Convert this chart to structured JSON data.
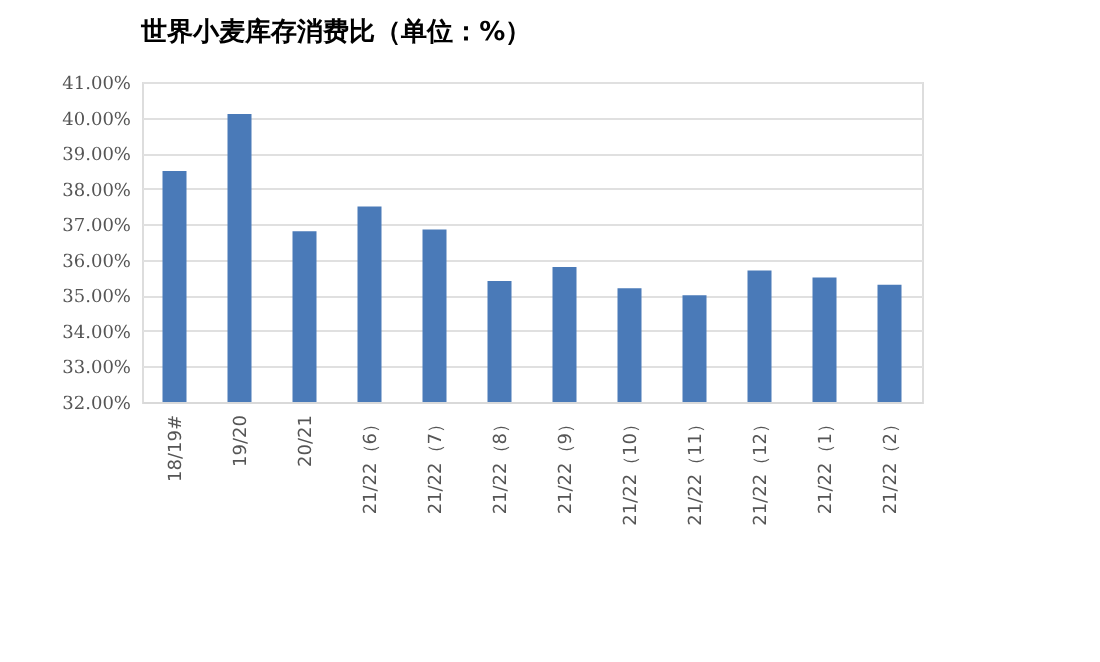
{
  "chart_data": {
    "type": "bar",
    "title": "世界小麦库存消费比（单位：%）",
    "categories": [
      "18/19#",
      "19/20",
      "20/21",
      "21/22（6）",
      "21/22（7）",
      "21/22（8）",
      "21/22（9）",
      "21/22（10）",
      "21/22（11）",
      "21/22（12）",
      "21/22（1）",
      "21/22（2）"
    ],
    "values": [
      38.5,
      40.1,
      36.8,
      37.5,
      36.85,
      35.4,
      35.8,
      35.2,
      35.0,
      35.7,
      35.5,
      35.3
    ],
    "color": "#4a7ab8",
    "ylim": [
      32,
      41
    ],
    "yticks": [
      {
        "value": 32,
        "label": "32.00%"
      },
      {
        "value": 33,
        "label": "33.00%"
      },
      {
        "value": 34,
        "label": "34.00%"
      },
      {
        "value": 35,
        "label": "35.00%"
      },
      {
        "value": 36,
        "label": "36.00%"
      },
      {
        "value": 37,
        "label": "37.00%"
      },
      {
        "value": 38,
        "label": "38.00%"
      },
      {
        "value": 39,
        "label": "39.00%"
      },
      {
        "value": 40,
        "label": "40.00%"
      },
      {
        "value": 41,
        "label": "41.00%"
      }
    ],
    "grid": "y"
  }
}
